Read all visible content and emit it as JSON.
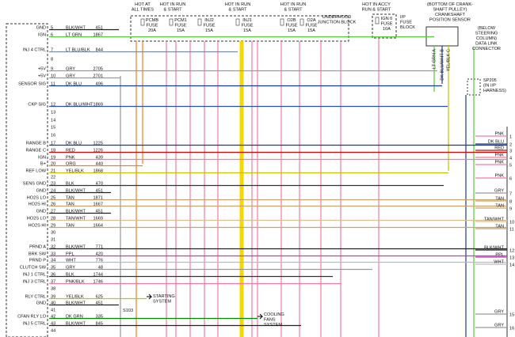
{
  "pcm": {
    "pins": [
      {
        "label": "GND",
        "pin": "5",
        "color": "BLK/WHT",
        "circuit": "451"
      },
      {
        "label": "IGN",
        "pin": "6",
        "color": "LT GRN",
        "circuit": "1867"
      },
      {
        "label": "INJ 4 CTRL",
        "pin": "7",
        "color": "LT BLU/BLK",
        "circuit": "844"
      },
      {
        "pin": "8"
      },
      {
        "label": "+5V",
        "pin": "9",
        "color": "GRY",
        "circuit": "2705"
      },
      {
        "label": "+5V",
        "pin": "10",
        "color": "GRY",
        "circuit": "2701"
      },
      {
        "label": "SENSOR SIG",
        "pin": "11",
        "color": "DK BLU",
        "circuit": "496"
      },
      {
        "label": "CKP SIG",
        "pin": "12",
        "color": "DK BLU/WHT",
        "circuit": "1869"
      },
      {
        "pin": "13"
      },
      {
        "pin": "14"
      },
      {
        "pin": "15"
      },
      {
        "pin": "16"
      },
      {
        "label": "RANGE B",
        "pin": "17",
        "color": "DK BLU",
        "circuit": "1225"
      },
      {
        "label": "RANGE C",
        "pin": "18",
        "color": "RED",
        "circuit": "1226"
      },
      {
        "label": "IGN",
        "pin": "19",
        "color": "PNK",
        "circuit": "439"
      },
      {
        "label": "B+",
        "pin": "20",
        "color": "ORG",
        "circuit": "440"
      },
      {
        "label": "REF LOW",
        "pin": "21",
        "color": "YEL/BLK",
        "circuit": "1868"
      },
      {
        "pin": "22"
      },
      {
        "label": "SENS GND",
        "pin": "23",
        "color": "BLK",
        "circuit": "470"
      },
      {
        "label": "GND",
        "pin": "24",
        "color": "BLK/WHT",
        "circuit": "451"
      },
      {
        "label": "HO2S LO",
        "pin": "25",
        "color": "TAN",
        "circuit": "1871"
      },
      {
        "label": "HO2S HI",
        "pin": "26",
        "color": "TAN",
        "circuit": "1667"
      },
      {
        "label": "GND",
        "pin": "27",
        "color": "BLK/WHT",
        "circuit": "451"
      },
      {
        "label": "HO2S LO",
        "pin": "28",
        "color": "TAN/WHT",
        "circuit": "1669"
      },
      {
        "label": "HO2S HI",
        "pin": "29",
        "color": "TAN",
        "circuit": "1664"
      },
      {
        "pin": "30"
      },
      {
        "pin": "31"
      },
      {
        "label": "PRND A",
        "pin": "32",
        "color": "BLK/WHT",
        "circuit": "771"
      },
      {
        "label": "BRK SW",
        "pin": "33",
        "color": "PPL",
        "circuit": "420"
      },
      {
        "label": "PRND P",
        "pin": "34",
        "color": "WHT",
        "circuit": "776"
      },
      {
        "label": "CLUTCH SW",
        "pin": "35",
        "color": "GRY",
        "circuit": "48"
      },
      {
        "label": "INJ 1 CTRL",
        "pin": "36",
        "color": "BLK",
        "circuit": "1744"
      },
      {
        "label": "INJ 3 CTRL",
        "pin": "37",
        "color": "PNK/BLK",
        "circuit": "1746"
      },
      {
        "pin": "38"
      },
      {
        "label": "RLY CTRL",
        "pin": "39",
        "color": "YEL/BLK",
        "circuit": "625"
      },
      {
        "label": "GND",
        "pin": "40",
        "color": "BLK/WHT",
        "circuit": "451"
      },
      {
        "pin": "41"
      },
      {
        "label": "CFAN RLY LO",
        "pin": "42",
        "color": "DK GRN",
        "circuit": "335"
      },
      {
        "label": "INJ 5 CTRL",
        "pin": "43",
        "color": "BLK/WHT",
        "circuit": "845"
      },
      {
        "pin": "44"
      }
    ]
  },
  "power_headers": [
    [
      "HOT AT",
      "ALL TIMES"
    ],
    [
      "HOT IN RUN",
      "& START"
    ],
    [
      "HOT IN RUN",
      "& START"
    ],
    [
      "HOT IN RUN",
      "& START"
    ],
    [
      "HOT IN ACCY",
      "RUN & START"
    ]
  ],
  "fuses": [
    [
      "PCMB",
      "FUSE",
      "20A"
    ],
    [
      "PCM1",
      "FUSE",
      "15A"
    ],
    [
      "INJ2",
      "FUSE",
      "15A"
    ],
    [
      "INJ1",
      "FUSE",
      "15A"
    ],
    [
      "O2B",
      "FUSE",
      "15A"
    ],
    [
      "O2A",
      "FUSE",
      "15A"
    ],
    [
      "IGN 0",
      "FUSE",
      "10A"
    ]
  ],
  "blocks": [
    [
      "UNDERHOOD",
      "JUNCTION BLOCK"
    ],
    [
      "I/P",
      "FUSE",
      "BLOCK"
    ]
  ],
  "components": [
    [
      "(BOTTOM OF CRANK-",
      "SHAFT PULLEY)",
      "CRANKSHAFT",
      "POSITION SENSOR"
    ],
    [
      "(BELOW",
      "STEERING",
      "COLUMN)",
      "DATA LINK",
      "CONNECTOR"
    ],
    [
      "SP205",
      "(IN I/P",
      "HARNESS)"
    ],
    [
      "STARTING",
      "SYSTEM"
    ],
    [
      "COOLING",
      "FANS",
      "SYSTEM"
    ],
    [
      "S103"
    ]
  ],
  "sensor_pins": [
    "LT GRN A",
    "DK BLU/WHT B",
    "YEL/BLK C"
  ],
  "right_wires": [
    {
      "color": "PNK",
      "num": "1"
    },
    {
      "color": "DK BLU",
      "num": "2"
    },
    {
      "color": "RED",
      "num": "3"
    },
    {
      "color": "PNK",
      "num": "4"
    },
    {
      "color": "PNK",
      "num": "5"
    },
    {
      "color": "PNK",
      "num": "6"
    },
    {
      "color": "GRY",
      "num": "7"
    },
    {
      "color": "TAN",
      "num": "8"
    },
    {
      "color": "TAN",
      "num": "9"
    },
    {
      "color": "TAN/WHT",
      "num": "10"
    },
    {
      "color": "TAN",
      "num": "11"
    },
    {
      "color": "BLK/WHT",
      "num": "12"
    },
    {
      "color": "PPL",
      "num": "13"
    },
    {
      "color": "WHT",
      "num": "14"
    },
    {
      "color": "GRY",
      "num": "15"
    },
    {
      "color": "GRY",
      "num": "16"
    }
  ]
}
